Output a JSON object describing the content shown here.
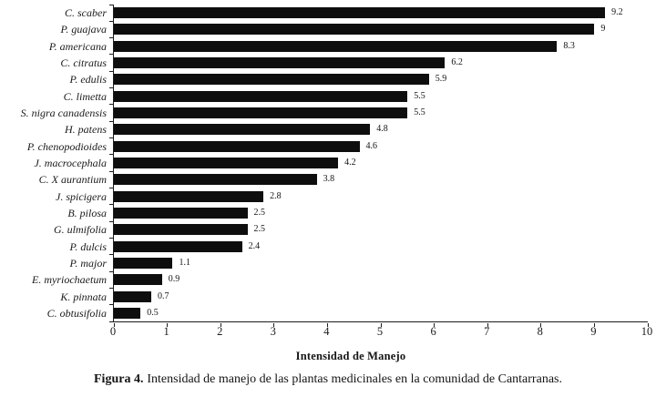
{
  "figure": {
    "caption": {
      "label": "Figura 4.",
      "text": "Intensidad de manejo de las plantas medicinales en la comunidad de Cantarranas."
    }
  },
  "chart_data": {
    "type": "bar",
    "orientation": "horizontal",
    "title": "",
    "xlabel": "Intensidad de Manejo",
    "ylabel": "",
    "xlim": [
      0,
      10
    ],
    "xticks": [
      "0",
      "1",
      "2",
      "3",
      "4",
      "5",
      "6",
      "7",
      "8",
      "9",
      "10"
    ],
    "grid": false,
    "legend": false,
    "bar_color": "#0e0e0e",
    "categories": [
      "C. scaber",
      "P. guajava",
      "P. americana",
      "C. citratus",
      "P. edulis",
      "C. limetta",
      "S. nigra canadensis",
      "H. patens",
      "P. chenopodioides",
      "J. macrocephala",
      "C. X aurantium",
      "J. spicigera",
      "B. pilosa",
      "G. ulmifolia",
      "P. dulcis",
      "P. major",
      "E. myriochaetum",
      "K. pinnata",
      "C. obtusifolia"
    ],
    "values": [
      9.2,
      9,
      8.3,
      6.2,
      5.9,
      5.5,
      5.5,
      4.8,
      4.6,
      4.2,
      3.8,
      2.8,
      2.5,
      2.5,
      2.4,
      1.1,
      0.9,
      0.7,
      0.5
    ],
    "value_labels": [
      "9.2",
      "9",
      "8.3",
      "6.2",
      "5.9",
      "5.5",
      "5.5",
      "4.8",
      "4.6",
      "4.2",
      "3.8",
      "2.8",
      "2.5",
      "2.5",
      "2.4",
      "1.1",
      "0.9",
      "0.7",
      "0.5"
    ]
  }
}
